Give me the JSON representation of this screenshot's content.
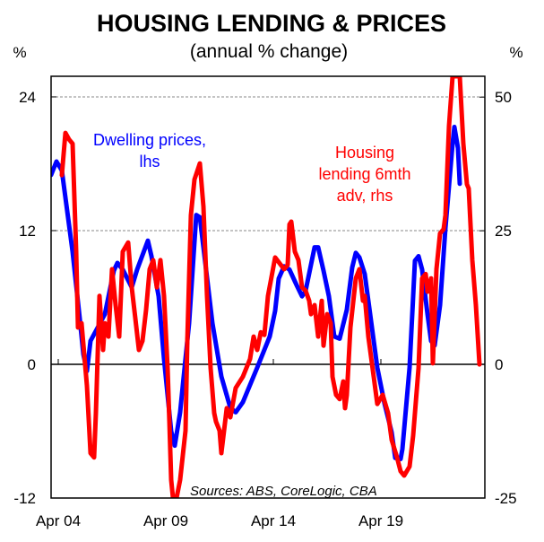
{
  "chart_data": {
    "type": "line",
    "title": "HOUSING LENDING & PRICES",
    "subtitle": "(annual % change)",
    "ylabel_left": "%",
    "ylabel_right": "%",
    "source": "Sources: ABS, CoreLogic, CBA",
    "xlim": [
      "2003-12",
      "2024-02"
    ],
    "ylim_left": [
      -12,
      25.85
    ],
    "ylim_right": [
      -25,
      53.9
    ],
    "left_ticks": [
      {
        "v": 24,
        "label": "24"
      },
      {
        "v": 12,
        "label": "12"
      },
      {
        "v": 0,
        "label": "0"
      },
      {
        "v": -12,
        "label": "-12"
      }
    ],
    "right_ticks": [
      {
        "v": 50,
        "label": "50"
      },
      {
        "v": 25,
        "label": "25"
      },
      {
        "v": 0,
        "label": "0"
      },
      {
        "v": -25,
        "label": "-25"
      }
    ],
    "x_ticks": [
      {
        "date": "2004-04",
        "label": "Apr 04"
      },
      {
        "date": "2009-04",
        "label": "Apr 09"
      },
      {
        "date": "2014-04",
        "label": "Apr 14"
      },
      {
        "date": "2019-04",
        "label": "Apr 19"
      }
    ],
    "gridlines": "dashed horizontal at 24 and 12 (lhs)",
    "series": [
      {
        "name": "Dwelling prices, lhs",
        "label_lines": [
          "Dwelling prices,",
          "lhs"
        ],
        "axis": "left",
        "color": "#0000ff",
        "points": [
          [
            "2003-12",
            17.0
          ],
          [
            "2004-03",
            18.2
          ],
          [
            "2004-06",
            17.4
          ],
          [
            "2004-12",
            10.1
          ],
          [
            "2005-04",
            4.1
          ],
          [
            "2005-06",
            0.9
          ],
          [
            "2005-08",
            -0.6
          ],
          [
            "2005-10",
            2.1
          ],
          [
            "2006-02",
            3.3
          ],
          [
            "2006-06",
            4.5
          ],
          [
            "2006-11",
            8.4
          ],
          [
            "2007-01",
            9.1
          ],
          [
            "2007-04",
            8.5
          ],
          [
            "2007-09",
            6.9
          ],
          [
            "2007-12",
            8.5
          ],
          [
            "2008-06",
            11.1
          ],
          [
            "2008-08",
            9.7
          ],
          [
            "2008-12",
            6.1
          ],
          [
            "2009-03",
            0.5
          ],
          [
            "2009-07",
            -6.0
          ],
          [
            "2009-09",
            -7.3
          ],
          [
            "2009-12",
            -4.3
          ],
          [
            "2010-05",
            3.7
          ],
          [
            "2010-09",
            13.4
          ],
          [
            "2010-11",
            13.2
          ],
          [
            "2011-01",
            10.5
          ],
          [
            "2011-06",
            3.7
          ],
          [
            "2011-11",
            -1.1
          ],
          [
            "2012-04",
            -3.9
          ],
          [
            "2012-07",
            -4.3
          ],
          [
            "2012-11",
            -3.4
          ],
          [
            "2013-07",
            -0.3
          ],
          [
            "2014-02",
            2.5
          ],
          [
            "2014-05",
            4.8
          ],
          [
            "2014-07",
            7.7
          ],
          [
            "2014-10",
            8.8
          ],
          [
            "2015-01",
            8.5
          ],
          [
            "2015-05",
            7.1
          ],
          [
            "2015-08",
            6.1
          ],
          [
            "2015-10",
            6.6
          ],
          [
            "2016-03",
            10.5
          ],
          [
            "2016-05",
            10.5
          ],
          [
            "2016-08",
            8.4
          ],
          [
            "2016-11",
            6.1
          ],
          [
            "2017-02",
            2.5
          ],
          [
            "2017-05",
            2.3
          ],
          [
            "2017-09",
            4.9
          ],
          [
            "2017-12",
            8.7
          ],
          [
            "2018-02",
            10.0
          ],
          [
            "2018-04",
            9.6
          ],
          [
            "2018-07",
            8.1
          ],
          [
            "2018-10",
            4.5
          ],
          [
            "2019-02",
            -0.3
          ],
          [
            "2019-06",
            -3.5
          ],
          [
            "2019-10",
            -6.1
          ],
          [
            "2019-12",
            -8.4
          ],
          [
            "2020-03",
            -8.5
          ],
          [
            "2020-04",
            -7.6
          ],
          [
            "2020-08",
            -0.3
          ],
          [
            "2020-11",
            9.3
          ],
          [
            "2021-01",
            9.7
          ],
          [
            "2021-03",
            8.5
          ],
          [
            "2021-06",
            4.5
          ],
          [
            "2021-08",
            2.1
          ],
          [
            "2021-10",
            1.7
          ],
          [
            "2022-01",
            5.3
          ],
          [
            "2022-04",
            12.2
          ],
          [
            "2022-08",
            19.8
          ],
          [
            "2022-09",
            21.3
          ],
          [
            "2022-11",
            19.4
          ],
          [
            "2022-12",
            16.2
          ]
        ]
      },
      {
        "name": "Housing lending 6mth adv, rhs",
        "label_lines": [
          "Housing",
          "lending 6mth",
          "adv, rhs"
        ],
        "axis": "right",
        "color": "#ff0000",
        "points": [
          [
            "2004-06",
            35.4
          ],
          [
            "2004-08",
            43.3
          ],
          [
            "2004-10",
            42.1
          ],
          [
            "2004-12",
            41.3
          ],
          [
            "2005-02",
            21.1
          ],
          [
            "2005-03",
            6.9
          ],
          [
            "2005-05",
            7.7
          ],
          [
            "2005-08",
            -4.0
          ],
          [
            "2005-10",
            -16.6
          ],
          [
            "2005-12",
            -17.4
          ],
          [
            "2006-01",
            -9.1
          ],
          [
            "2006-03",
            12.8
          ],
          [
            "2006-05",
            2.7
          ],
          [
            "2006-06",
            7.7
          ],
          [
            "2006-08",
            5.2
          ],
          [
            "2006-10",
            17.8
          ],
          [
            "2006-12",
            11.1
          ],
          [
            "2007-02",
            5.2
          ],
          [
            "2007-04",
            21.1
          ],
          [
            "2007-07",
            22.8
          ],
          [
            "2007-09",
            14.4
          ],
          [
            "2007-11",
            8.6
          ],
          [
            "2008-01",
            2.7
          ],
          [
            "2008-03",
            4.4
          ],
          [
            "2008-05",
            10.2
          ],
          [
            "2008-07",
            17.8
          ],
          [
            "2008-09",
            19.5
          ],
          [
            "2008-11",
            14.4
          ],
          [
            "2009-01",
            19.5
          ],
          [
            "2009-03",
            12.8
          ],
          [
            "2009-05",
            -0.7
          ],
          [
            "2009-06",
            -10.7
          ],
          [
            "2009-07",
            -21.6
          ],
          [
            "2009-08",
            -25.0
          ],
          [
            "2009-10",
            -25.0
          ],
          [
            "2009-12",
            -21.6
          ],
          [
            "2010-03",
            -12.4
          ],
          [
            "2010-04",
            4.4
          ],
          [
            "2010-06",
            27.9
          ],
          [
            "2010-08",
            34.6
          ],
          [
            "2010-11",
            37.6
          ],
          [
            "2011-01",
            29.5
          ],
          [
            "2011-03",
            12.8
          ],
          [
            "2011-05",
            -0.7
          ],
          [
            "2011-07",
            -9.1
          ],
          [
            "2011-08",
            -10.7
          ],
          [
            "2011-10",
            -12.4
          ],
          [
            "2011-11",
            -16.6
          ],
          [
            "2012-02",
            -8.2
          ],
          [
            "2012-04",
            -9.9
          ],
          [
            "2012-07",
            -4.4
          ],
          [
            "2012-11",
            -2.3
          ],
          [
            "2013-03",
            1.0
          ],
          [
            "2013-05",
            5.2
          ],
          [
            "2013-07",
            2.7
          ],
          [
            "2013-09",
            6.0
          ],
          [
            "2013-11",
            5.5
          ],
          [
            "2014-01",
            12.8
          ],
          [
            "2014-05",
            20.0
          ],
          [
            "2014-10",
            17.8
          ],
          [
            "2014-12",
            18.6
          ],
          [
            "2015-01",
            26.2
          ],
          [
            "2015-02",
            26.7
          ],
          [
            "2015-04",
            21.1
          ],
          [
            "2015-06",
            19.5
          ],
          [
            "2015-08",
            14.4
          ],
          [
            "2015-10",
            13.8
          ],
          [
            "2015-12",
            11.9
          ],
          [
            "2016-01",
            9.4
          ],
          [
            "2016-03",
            11.1
          ],
          [
            "2016-05",
            5.2
          ],
          [
            "2016-07",
            11.9
          ],
          [
            "2016-08",
            3.5
          ],
          [
            "2016-10",
            9.4
          ],
          [
            "2016-12",
            7.7
          ],
          [
            "2017-01",
            -2.3
          ],
          [
            "2017-03",
            -5.7
          ],
          [
            "2017-05",
            -6.5
          ],
          [
            "2017-07",
            -3.2
          ],
          [
            "2017-08",
            -8.2
          ],
          [
            "2017-09",
            -5.7
          ],
          [
            "2017-11",
            6.9
          ],
          [
            "2018-02",
            16.1
          ],
          [
            "2018-04",
            17.8
          ],
          [
            "2018-06",
            11.9
          ],
          [
            "2018-07",
            12.8
          ],
          [
            "2018-09",
            5.2
          ],
          [
            "2018-12",
            -2.3
          ],
          [
            "2019-02",
            -7.4
          ],
          [
            "2019-05",
            -5.7
          ],
          [
            "2019-08",
            -9.1
          ],
          [
            "2019-10",
            -14.1
          ],
          [
            "2020-01",
            -17.4
          ],
          [
            "2020-03",
            -20.0
          ],
          [
            "2020-05",
            -20.8
          ],
          [
            "2020-08",
            -19.1
          ],
          [
            "2020-10",
            -13.3
          ],
          [
            "2021-01",
            -0.7
          ],
          [
            "2021-03",
            16.1
          ],
          [
            "2021-05",
            16.9
          ],
          [
            "2021-06",
            13.6
          ],
          [
            "2021-08",
            16.1
          ],
          [
            "2021-09",
            0.2
          ],
          [
            "2021-11",
            17.8
          ],
          [
            "2022-01",
            24.5
          ],
          [
            "2022-03",
            25.3
          ],
          [
            "2022-04",
            27.9
          ],
          [
            "2022-06",
            44.6
          ],
          [
            "2022-08",
            53.9
          ],
          [
            "2022-12",
            53.9
          ],
          [
            "2023-02",
            41.3
          ],
          [
            "2023-04",
            33.7
          ],
          [
            "2023-05",
            32.9
          ],
          [
            "2023-07",
            19.5
          ],
          [
            "2023-09",
            11.1
          ],
          [
            "2023-11",
            0.0
          ]
        ]
      }
    ]
  }
}
